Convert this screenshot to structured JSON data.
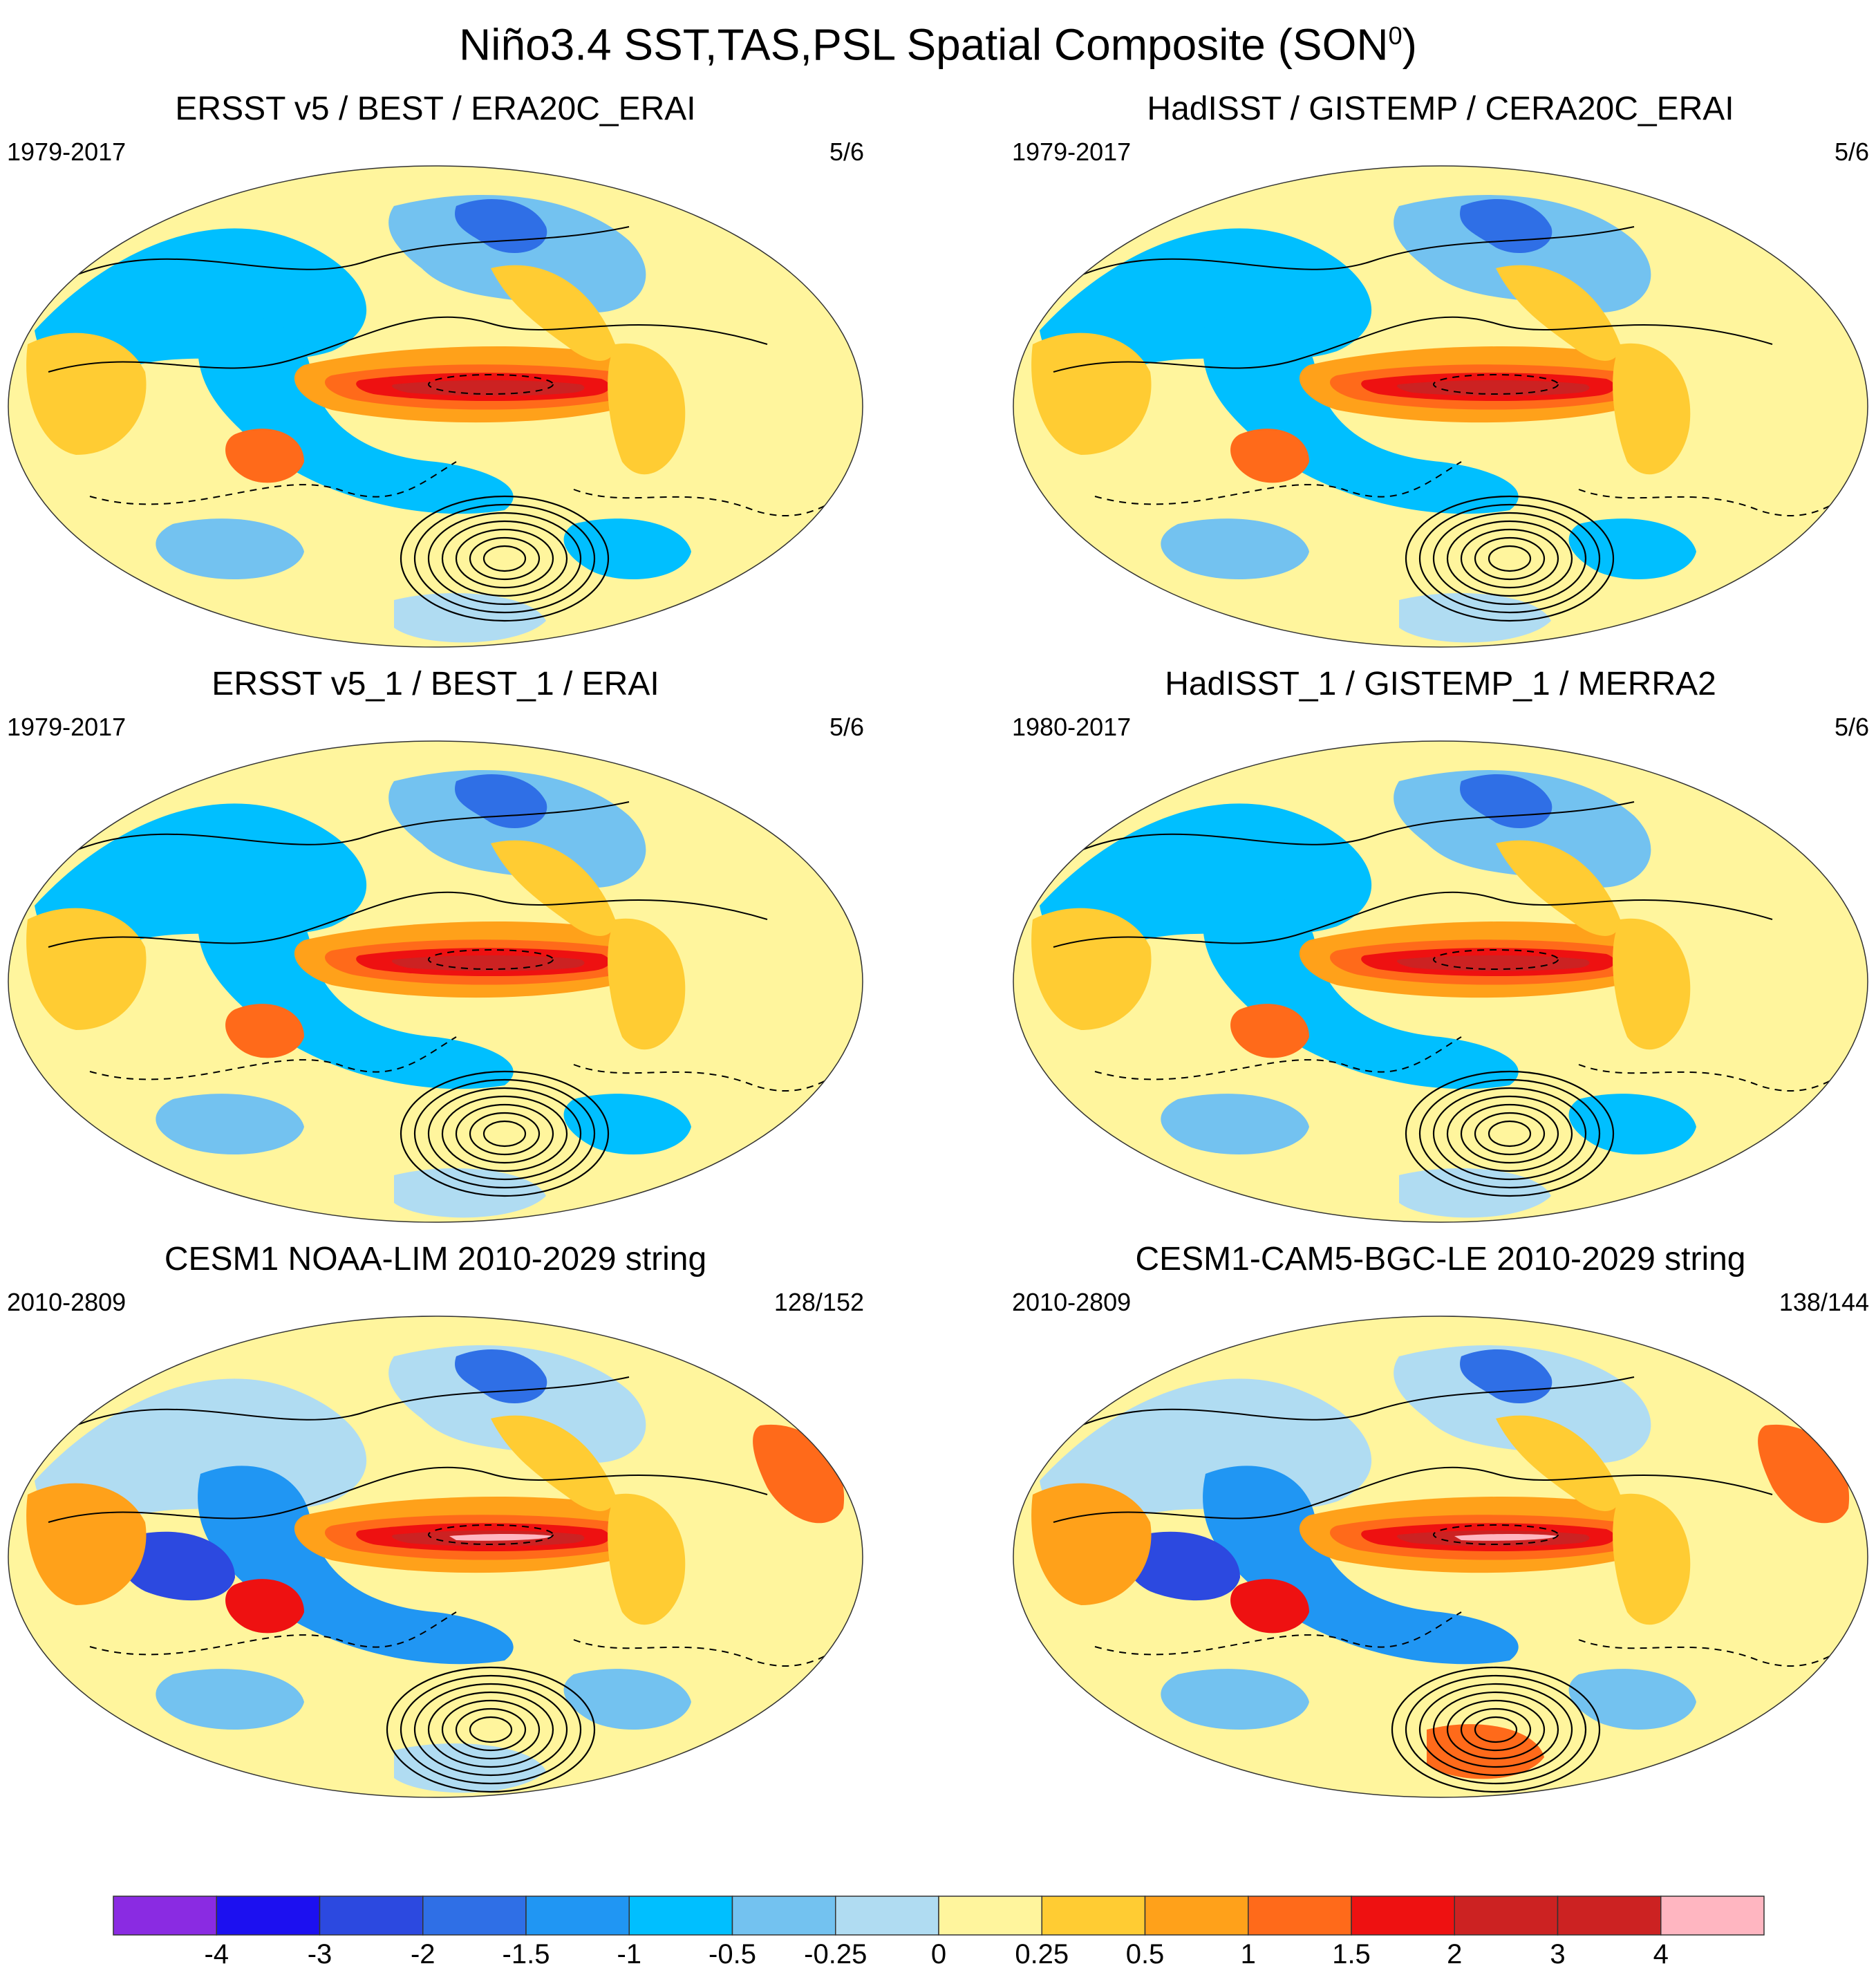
{
  "title_main": "Niño3.4 SST,TAS,PSL Spatial Composite (SON",
  "title_sup": "0",
  "title_close": ")",
  "chart_data": {
    "type": "heatmap",
    "description_kind": "composite map panels with contour overlay",
    "panels": [
      {
        "title": "ERSST v5 / BEST / ERA20C_ERAI",
        "years": "1979-2017",
        "count": "5/6"
      },
      {
        "title": "HadISST / GISTEMP / CERA20C_ERAI",
        "years": "1979-2017",
        "count": "5/6"
      },
      {
        "title": "ERSST v5_1 / BEST_1 / ERAI",
        "years": "1979-2017",
        "count": "5/6"
      },
      {
        "title": "HadISST_1 / GISTEMP_1 / MERRA2",
        "years": "1980-2017",
        "count": "5/6"
      },
      {
        "title": "CESM1 NOAA-LIM 2010-2029 string",
        "years": "2010-2809",
        "count": "128/152"
      },
      {
        "title": "CESM1-CAM5-BGC-LE 2010-2029 string",
        "years": "2010-2809",
        "count": "138/144"
      }
    ],
    "colorbar": {
      "labels": [
        "-4",
        "-3",
        "-2",
        "-1.5",
        "-1",
        "-0.5",
        "-0.25",
        "0",
        "0.25",
        "0.5",
        "1",
        "1.5",
        "2",
        "3",
        "4"
      ],
      "colors": [
        "#8a2be2",
        "#1c10f0",
        "#2c49e0",
        "#2f6fe6",
        "#2096f3",
        "#00bfff",
        "#73c2f0",
        "#b0dcf2",
        "#fff59d",
        "#ffcc33",
        "#ffa11a",
        "#ff6a1a",
        "#ee1111",
        "#cc2222",
        "#ffb6c1"
      ]
    }
  }
}
